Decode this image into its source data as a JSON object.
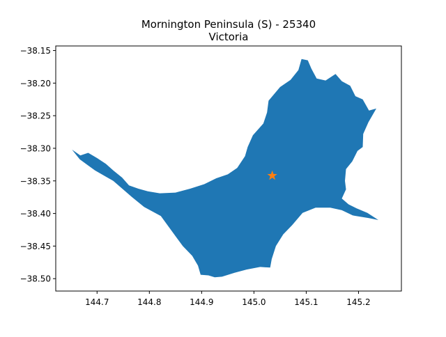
{
  "chart_data": {
    "type": "map",
    "title_line1": "Mornington Peninsula (S) - 25340",
    "title_line2": "Victoria",
    "xlim": [
      144.621,
      145.282
    ],
    "ylim": [
      -38.519,
      -38.143
    ],
    "x_ticks": [
      144.7,
      144.8,
      144.9,
      145.0,
      145.1,
      145.2
    ],
    "x_tick_labels": [
      "144.7",
      "144.8",
      "144.9",
      "145.0",
      "145.1",
      "145.2"
    ],
    "y_ticks": [
      -38.15,
      -38.2,
      -38.25,
      -38.3,
      -38.35,
      -38.4,
      -38.45,
      -38.5
    ],
    "y_tick_labels": [
      "−38.15",
      "−38.20",
      "−38.25",
      "−38.30",
      "−38.35",
      "−38.40",
      "−38.45",
      "−38.50"
    ],
    "region_color": "#1f77b4",
    "marker_color": "#ff7f0e",
    "marker": {
      "symbol": "star",
      "lon": 145.035,
      "lat": -38.342
    },
    "polygon": [
      [
        144.652,
        -38.302
      ],
      [
        144.668,
        -38.311
      ],
      [
        144.683,
        -38.307
      ],
      [
        144.7,
        -38.315
      ],
      [
        144.717,
        -38.324
      ],
      [
        144.731,
        -38.334
      ],
      [
        144.748,
        -38.345
      ],
      [
        144.761,
        -38.357
      ],
      [
        144.779,
        -38.362
      ],
      [
        144.797,
        -38.366
      ],
      [
        144.82,
        -38.369
      ],
      [
        144.85,
        -38.368
      ],
      [
        144.878,
        -38.362
      ],
      [
        144.905,
        -38.355
      ],
      [
        144.928,
        -38.346
      ],
      [
        144.95,
        -38.34
      ],
      [
        144.968,
        -38.33
      ],
      [
        144.983,
        -38.312
      ],
      [
        144.988,
        -38.298
      ],
      [
        144.998,
        -38.28
      ],
      [
        145.018,
        -38.262
      ],
      [
        145.025,
        -38.245
      ],
      [
        145.028,
        -38.227
      ],
      [
        145.05,
        -38.206
      ],
      [
        145.07,
        -38.195
      ],
      [
        145.085,
        -38.18
      ],
      [
        145.091,
        -38.163
      ],
      [
        145.103,
        -38.165
      ],
      [
        145.11,
        -38.178
      ],
      [
        145.12,
        -38.193
      ],
      [
        145.137,
        -38.196
      ],
      [
        145.156,
        -38.186
      ],
      [
        145.168,
        -38.197
      ],
      [
        145.184,
        -38.204
      ],
      [
        145.194,
        -38.22
      ],
      [
        145.208,
        -38.225
      ],
      [
        145.22,
        -38.242
      ],
      [
        145.234,
        -38.239
      ],
      [
        145.219,
        -38.26
      ],
      [
        145.209,
        -38.278
      ],
      [
        145.208,
        -38.298
      ],
      [
        145.198,
        -38.304
      ],
      [
        145.188,
        -38.32
      ],
      [
        145.176,
        -38.332
      ],
      [
        145.174,
        -38.35
      ],
      [
        145.176,
        -38.363
      ],
      [
        145.168,
        -38.377
      ],
      [
        145.181,
        -38.386
      ],
      [
        145.196,
        -38.392
      ],
      [
        145.217,
        -38.399
      ],
      [
        145.238,
        -38.41
      ],
      [
        145.219,
        -38.407
      ],
      [
        145.189,
        -38.403
      ],
      [
        145.168,
        -38.395
      ],
      [
        145.146,
        -38.391
      ],
      [
        145.118,
        -38.391
      ],
      [
        145.093,
        -38.399
      ],
      [
        145.073,
        -38.418
      ],
      [
        145.056,
        -38.432
      ],
      [
        145.042,
        -38.45
      ],
      [
        145.034,
        -38.47
      ],
      [
        145.031,
        -38.483
      ],
      [
        145.012,
        -38.482
      ],
      [
        144.986,
        -38.486
      ],
      [
        144.963,
        -38.491
      ],
      [
        144.939,
        -38.497
      ],
      [
        144.925,
        -38.498
      ],
      [
        144.913,
        -38.495
      ],
      [
        144.898,
        -38.494
      ],
      [
        144.893,
        -38.48
      ],
      [
        144.882,
        -38.465
      ],
      [
        144.864,
        -38.45
      ],
      [
        144.842,
        -38.426
      ],
      [
        144.822,
        -38.404
      ],
      [
        144.79,
        -38.39
      ],
      [
        144.767,
        -38.375
      ],
      [
        144.731,
        -38.35
      ],
      [
        144.696,
        -38.334
      ],
      [
        144.667,
        -38.317
      ],
      [
        144.652,
        -38.302
      ]
    ]
  }
}
